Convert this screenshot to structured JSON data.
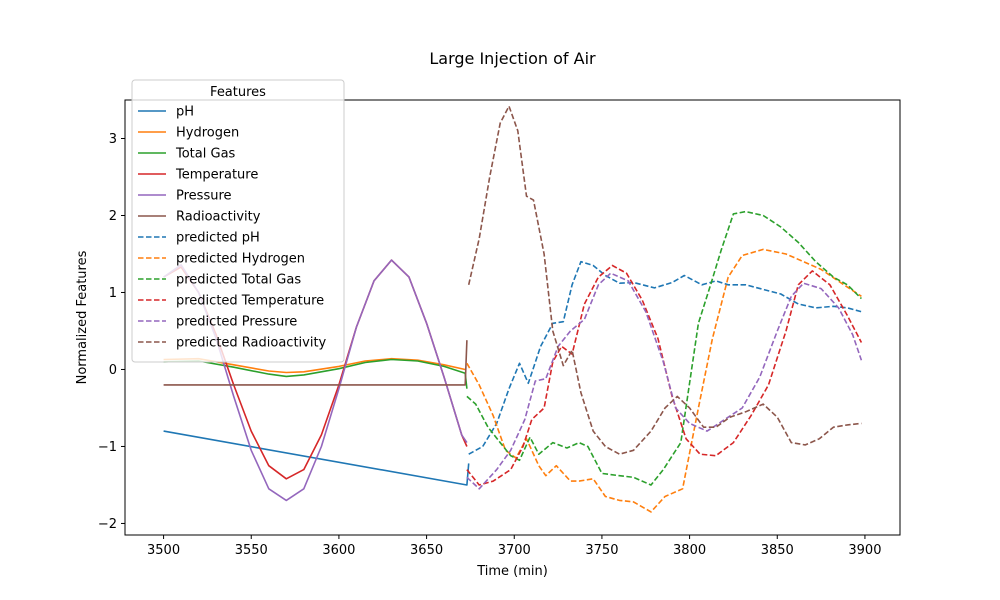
{
  "chart_data": {
    "type": "line",
    "title": "Large Injection of Air",
    "xlabel": "Time (min)",
    "ylabel": "Normalized Features",
    "xlim": [
      3478,
      3920
    ],
    "ylim": [
      -2.15,
      3.5
    ],
    "xticks": [
      3500,
      3550,
      3600,
      3650,
      3700,
      3750,
      3800,
      3850,
      3900
    ],
    "yticks": [
      -2,
      -1,
      0,
      1,
      2,
      3
    ],
    "grid": false,
    "legend": {
      "title": "Features",
      "placement": "top-left"
    },
    "series": [
      {
        "name": "pH",
        "color": "#1f77b4",
        "style": "solid",
        "points": [
          [
            3500,
            -0.8
          ],
          [
            3673,
            -1.5
          ],
          [
            3674,
            -1.22
          ]
        ]
      },
      {
        "name": "Hydrogen",
        "color": "#ff7f0e",
        "style": "solid",
        "points": [
          [
            3500,
            0.13
          ],
          [
            3520,
            0.14
          ],
          [
            3540,
            0.06
          ],
          [
            3560,
            -0.02
          ],
          [
            3570,
            -0.04
          ],
          [
            3580,
            -0.03
          ],
          [
            3600,
            0.04
          ],
          [
            3615,
            0.11
          ],
          [
            3630,
            0.14
          ],
          [
            3645,
            0.12
          ],
          [
            3660,
            0.06
          ],
          [
            3672,
            0.0
          ]
        ]
      },
      {
        "name": "Total Gas",
        "color": "#2ca02c",
        "style": "solid",
        "points": [
          [
            3500,
            0.1
          ],
          [
            3520,
            0.11
          ],
          [
            3540,
            0.03
          ],
          [
            3560,
            -0.06
          ],
          [
            3570,
            -0.09
          ],
          [
            3580,
            -0.07
          ],
          [
            3600,
            0.01
          ],
          [
            3615,
            0.09
          ],
          [
            3630,
            0.13
          ],
          [
            3645,
            0.11
          ],
          [
            3660,
            0.04
          ],
          [
            3672,
            -0.05
          ],
          [
            3673,
            -0.25
          ]
        ]
      },
      {
        "name": "Temperature",
        "color": "#d62728",
        "style": "solid",
        "points": [
          [
            3500,
            1.2
          ],
          [
            3510,
            1.33
          ],
          [
            3520,
            1.0
          ],
          [
            3530,
            0.45
          ],
          [
            3540,
            -0.2
          ],
          [
            3550,
            -0.8
          ],
          [
            3560,
            -1.25
          ],
          [
            3570,
            -1.42
          ],
          [
            3580,
            -1.3
          ],
          [
            3590,
            -0.85
          ],
          [
            3600,
            -0.2
          ],
          [
            3610,
            0.55
          ],
          [
            3620,
            1.15
          ],
          [
            3630,
            1.42
          ],
          [
            3640,
            1.2
          ],
          [
            3650,
            0.6
          ],
          [
            3660,
            -0.1
          ],
          [
            3670,
            -0.85
          ],
          [
            3673,
            -1.0
          ]
        ]
      },
      {
        "name": "Pressure",
        "color": "#9467bd",
        "style": "solid",
        "points": [
          [
            3500,
            1.2
          ],
          [
            3510,
            1.36
          ],
          [
            3520,
            1.0
          ],
          [
            3530,
            0.4
          ],
          [
            3540,
            -0.35
          ],
          [
            3550,
            -1.05
          ],
          [
            3560,
            -1.55
          ],
          [
            3570,
            -1.7
          ],
          [
            3580,
            -1.55
          ],
          [
            3590,
            -1.0
          ],
          [
            3600,
            -0.25
          ],
          [
            3610,
            0.55
          ],
          [
            3620,
            1.15
          ],
          [
            3630,
            1.42
          ],
          [
            3640,
            1.2
          ],
          [
            3650,
            0.6
          ],
          [
            3660,
            -0.1
          ],
          [
            3670,
            -0.85
          ],
          [
            3673,
            -0.95
          ]
        ]
      },
      {
        "name": "Radioactivity",
        "color": "#8c564b",
        "style": "solid",
        "points": [
          [
            3500,
            -0.2
          ],
          [
            3672,
            -0.2
          ],
          [
            3673,
            0.38
          ]
        ]
      },
      {
        "name": "predicted pH",
        "color": "#1f77b4",
        "style": "dashed",
        "points": [
          [
            3674,
            -1.1
          ],
          [
            3682,
            -1.0
          ],
          [
            3690,
            -0.7
          ],
          [
            3697,
            -0.25
          ],
          [
            3703,
            0.08
          ],
          [
            3708,
            -0.18
          ],
          [
            3715,
            0.3
          ],
          [
            3722,
            0.6
          ],
          [
            3728,
            0.62
          ],
          [
            3733,
            1.1
          ],
          [
            3738,
            1.4
          ],
          [
            3745,
            1.35
          ],
          [
            3752,
            1.22
          ],
          [
            3760,
            1.12
          ],
          [
            3768,
            1.13
          ],
          [
            3780,
            1.06
          ],
          [
            3790,
            1.13
          ],
          [
            3797,
            1.22
          ],
          [
            3807,
            1.1
          ],
          [
            3815,
            1.15
          ],
          [
            3822,
            1.1
          ],
          [
            3832,
            1.1
          ],
          [
            3842,
            1.04
          ],
          [
            3852,
            0.98
          ],
          [
            3862,
            0.85
          ],
          [
            3872,
            0.8
          ],
          [
            3882,
            0.82
          ],
          [
            3890,
            0.8
          ],
          [
            3898,
            0.75
          ]
        ]
      },
      {
        "name": "predicted Hydrogen",
        "color": "#ff7f0e",
        "style": "dashed",
        "points": [
          [
            3673,
            0.08
          ],
          [
            3680,
            -0.2
          ],
          [
            3688,
            -0.6
          ],
          [
            3695,
            -1.05
          ],
          [
            3701,
            -1.15
          ],
          [
            3707,
            -0.9
          ],
          [
            3714,
            -1.25
          ],
          [
            3718,
            -1.38
          ],
          [
            3724,
            -1.25
          ],
          [
            3732,
            -1.45
          ],
          [
            3737,
            -1.45
          ],
          [
            3745,
            -1.42
          ],
          [
            3752,
            -1.65
          ],
          [
            3760,
            -1.7
          ],
          [
            3768,
            -1.72
          ],
          [
            3778,
            -1.85
          ],
          [
            3786,
            -1.65
          ],
          [
            3796,
            -1.55
          ],
          [
            3805,
            -0.5
          ],
          [
            3813,
            0.4
          ],
          [
            3822,
            1.2
          ],
          [
            3830,
            1.48
          ],
          [
            3842,
            1.56
          ],
          [
            3855,
            1.5
          ],
          [
            3865,
            1.4
          ],
          [
            3875,
            1.3
          ],
          [
            3888,
            1.1
          ],
          [
            3898,
            0.95
          ]
        ]
      },
      {
        "name": "predicted Total Gas",
        "color": "#2ca02c",
        "style": "dashed",
        "points": [
          [
            3673,
            -0.35
          ],
          [
            3678,
            -0.45
          ],
          [
            3685,
            -0.75
          ],
          [
            3692,
            -0.95
          ],
          [
            3698,
            -1.12
          ],
          [
            3703,
            -1.18
          ],
          [
            3709,
            -0.88
          ],
          [
            3714,
            -1.1
          ],
          [
            3722,
            -0.95
          ],
          [
            3730,
            -1.02
          ],
          [
            3737,
            -0.95
          ],
          [
            3742,
            -1.0
          ],
          [
            3750,
            -1.35
          ],
          [
            3760,
            -1.38
          ],
          [
            3768,
            -1.4
          ],
          [
            3778,
            -1.5
          ],
          [
            3785,
            -1.3
          ],
          [
            3795,
            -0.95
          ],
          [
            3805,
            0.6
          ],
          [
            3812,
            1.1
          ],
          [
            3818,
            1.55
          ],
          [
            3825,
            2.02
          ],
          [
            3832,
            2.05
          ],
          [
            3842,
            2.0
          ],
          [
            3852,
            1.85
          ],
          [
            3862,
            1.65
          ],
          [
            3872,
            1.4
          ],
          [
            3882,
            1.2
          ],
          [
            3890,
            1.1
          ],
          [
            3898,
            0.92
          ]
        ]
      },
      {
        "name": "predicted Temperature",
        "color": "#d62728",
        "style": "dashed",
        "points": [
          [
            3673,
            -1.3
          ],
          [
            3680,
            -1.5
          ],
          [
            3688,
            -1.45
          ],
          [
            3698,
            -1.3
          ],
          [
            3705,
            -1.0
          ],
          [
            3710,
            -0.65
          ],
          [
            3717,
            -0.5
          ],
          [
            3722,
            0.1
          ],
          [
            3727,
            0.3
          ],
          [
            3733,
            0.2
          ],
          [
            3740,
            0.85
          ],
          [
            3748,
            1.2
          ],
          [
            3756,
            1.35
          ],
          [
            3764,
            1.25
          ],
          [
            3773,
            0.9
          ],
          [
            3782,
            0.4
          ],
          [
            3790,
            -0.35
          ],
          [
            3798,
            -0.9
          ],
          [
            3806,
            -1.1
          ],
          [
            3815,
            -1.12
          ],
          [
            3825,
            -0.95
          ],
          [
            3835,
            -0.6
          ],
          [
            3845,
            -0.2
          ],
          [
            3855,
            0.5
          ],
          [
            3862,
            1.1
          ],
          [
            3870,
            1.28
          ],
          [
            3880,
            1.1
          ],
          [
            3890,
            0.7
          ],
          [
            3898,
            0.35
          ]
        ]
      },
      {
        "name": "predicted Pressure",
        "color": "#9467bd",
        "style": "dashed",
        "points": [
          [
            3673,
            -1.4
          ],
          [
            3680,
            -1.55
          ],
          [
            3690,
            -1.3
          ],
          [
            3698,
            -1.05
          ],
          [
            3706,
            -0.65
          ],
          [
            3712,
            -0.15
          ],
          [
            3718,
            -0.12
          ],
          [
            3725,
            0.3
          ],
          [
            3732,
            0.5
          ],
          [
            3740,
            0.65
          ],
          [
            3748,
            1.1
          ],
          [
            3755,
            1.25
          ],
          [
            3765,
            1.15
          ],
          [
            3775,
            0.75
          ],
          [
            3785,
            0.1
          ],
          [
            3792,
            -0.5
          ],
          [
            3800,
            -0.7
          ],
          [
            3810,
            -0.8
          ],
          [
            3820,
            -0.65
          ],
          [
            3830,
            -0.5
          ],
          [
            3840,
            -0.1
          ],
          [
            3850,
            0.5
          ],
          [
            3858,
            0.95
          ],
          [
            3865,
            1.12
          ],
          [
            3875,
            1.05
          ],
          [
            3885,
            0.8
          ],
          [
            3893,
            0.45
          ],
          [
            3898,
            0.12
          ]
        ]
      },
      {
        "name": "predicted Radioactivity",
        "color": "#8c564b",
        "style": "dashed",
        "points": [
          [
            3674,
            1.1
          ],
          [
            3680,
            1.7
          ],
          [
            3686,
            2.5
          ],
          [
            3692,
            3.2
          ],
          [
            3697,
            3.42
          ],
          [
            3702,
            3.1
          ],
          [
            3707,
            2.25
          ],
          [
            3711,
            2.2
          ],
          [
            3717,
            1.5
          ],
          [
            3722,
            0.5
          ],
          [
            3728,
            0.05
          ],
          [
            3733,
            0.25
          ],
          [
            3738,
            -0.3
          ],
          [
            3745,
            -0.8
          ],
          [
            3752,
            -1.0
          ],
          [
            3760,
            -1.1
          ],
          [
            3768,
            -1.05
          ],
          [
            3778,
            -0.8
          ],
          [
            3786,
            -0.5
          ],
          [
            3793,
            -0.35
          ],
          [
            3800,
            -0.5
          ],
          [
            3808,
            -0.75
          ],
          [
            3815,
            -0.75
          ],
          [
            3823,
            -0.62
          ],
          [
            3832,
            -0.55
          ],
          [
            3842,
            -0.45
          ],
          [
            3850,
            -0.62
          ],
          [
            3858,
            -0.95
          ],
          [
            3866,
            -0.98
          ],
          [
            3874,
            -0.9
          ],
          [
            3882,
            -0.75
          ],
          [
            3890,
            -0.72
          ],
          [
            3898,
            -0.7
          ]
        ]
      }
    ]
  }
}
